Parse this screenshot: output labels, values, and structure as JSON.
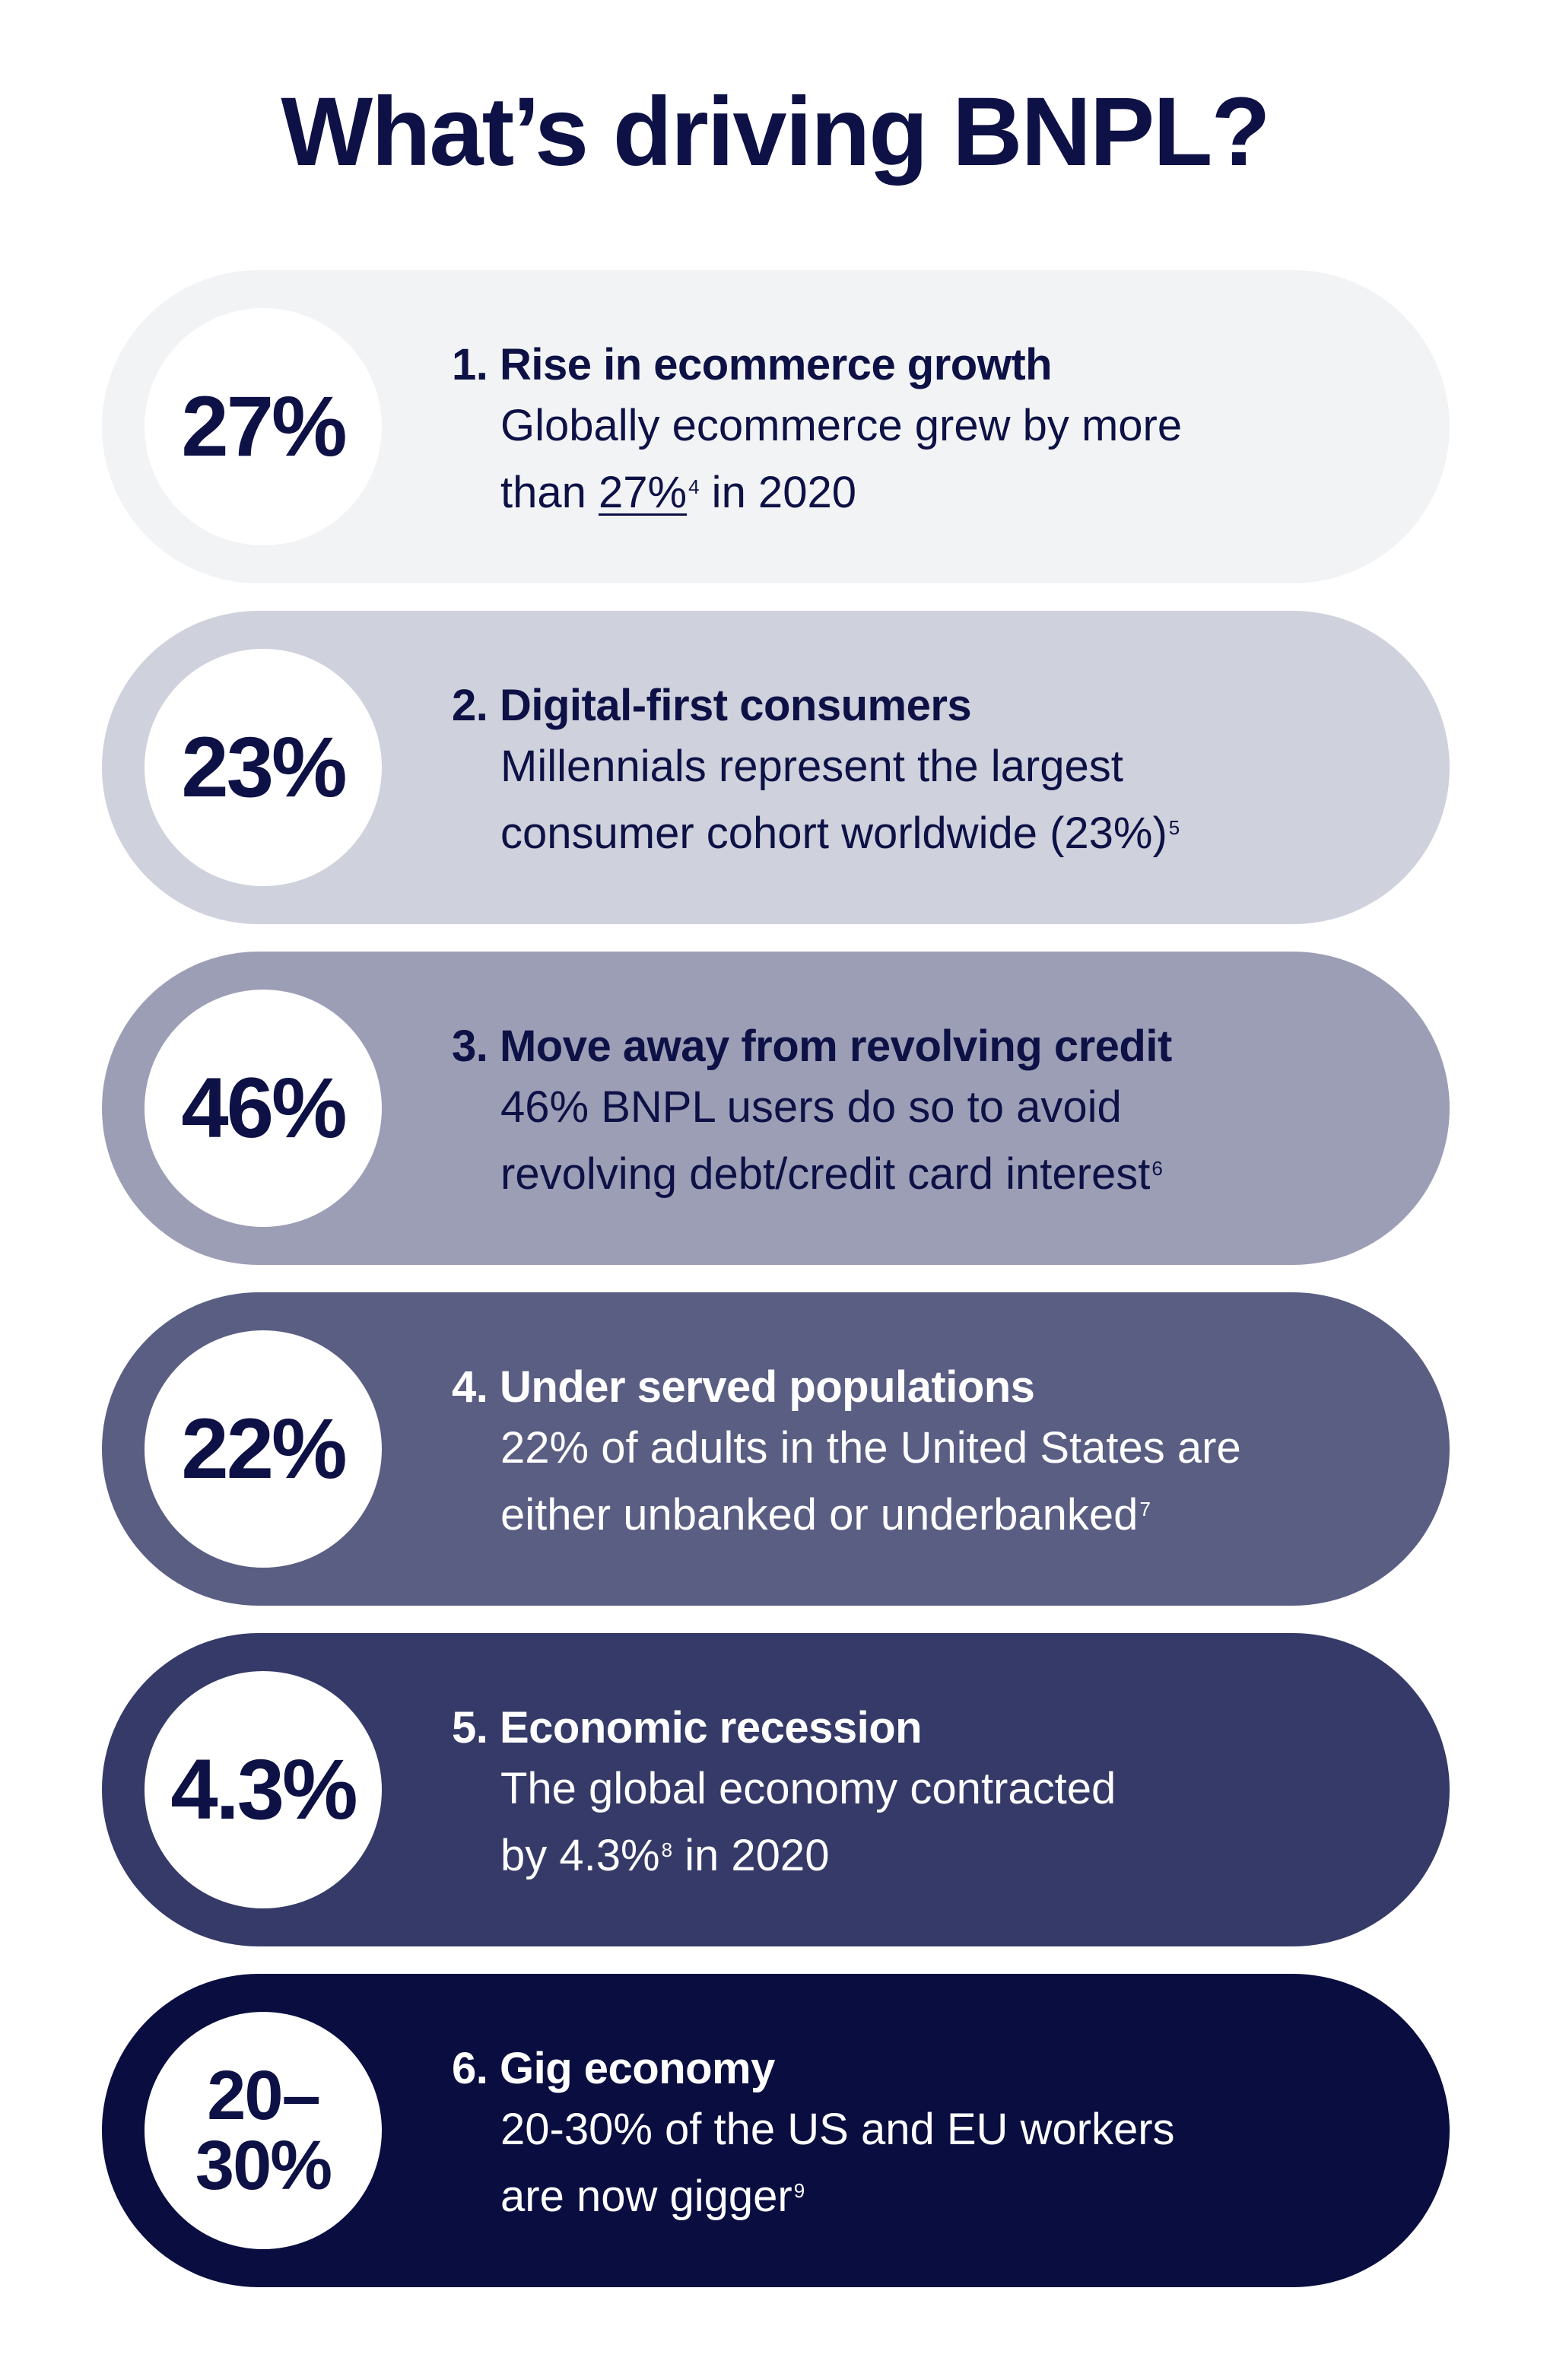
{
  "title": "What’s driving BNPL?",
  "colors": {
    "navy": "#0d1145",
    "pill_1": "#f2f3f5",
    "pill_2": "#cfd1dc",
    "pill_3": "#9c9eb6",
    "pill_4": "#5a5e83",
    "pill_5": "#353a68",
    "pill_6": "#090d40"
  },
  "drivers": [
    {
      "stat": "27%",
      "heading": "1. Rise in ecommerce growth",
      "line1": "Globally ecommerce grew by more",
      "line2_pre": "than ",
      "line2_link": "27%",
      "line2_note": "4",
      "line2_post": " in 2020"
    },
    {
      "stat": "23%",
      "heading": "2. Digital-first consumers",
      "line1": "Millennials represent the largest",
      "line2": "consumer cohort worldwide (23%)",
      "note": "5"
    },
    {
      "stat": "46%",
      "heading": "3. Move away from revolving credit",
      "line1": "46% BNPL users do so to avoid",
      "line2": "revolving debt/credit card interest",
      "note": "6"
    },
    {
      "stat": "22%",
      "heading": "4. Under served populations",
      "line1": "22% of adults in the United States are",
      "line2": "either unbanked or underbanked",
      "note": "7"
    },
    {
      "stat": "4.3%",
      "heading": "5. Economic recession",
      "line1": "The global economy contracted",
      "line2_pre": "by 4.3%",
      "line2_note": "8",
      "line2_post": " in 2020"
    },
    {
      "stat_line1": "20–",
      "stat_line2": "30%",
      "heading": "6. Gig economy",
      "line1": "20-30% of the US and EU workers",
      "line2": "are now gigger",
      "note": "9"
    }
  ]
}
